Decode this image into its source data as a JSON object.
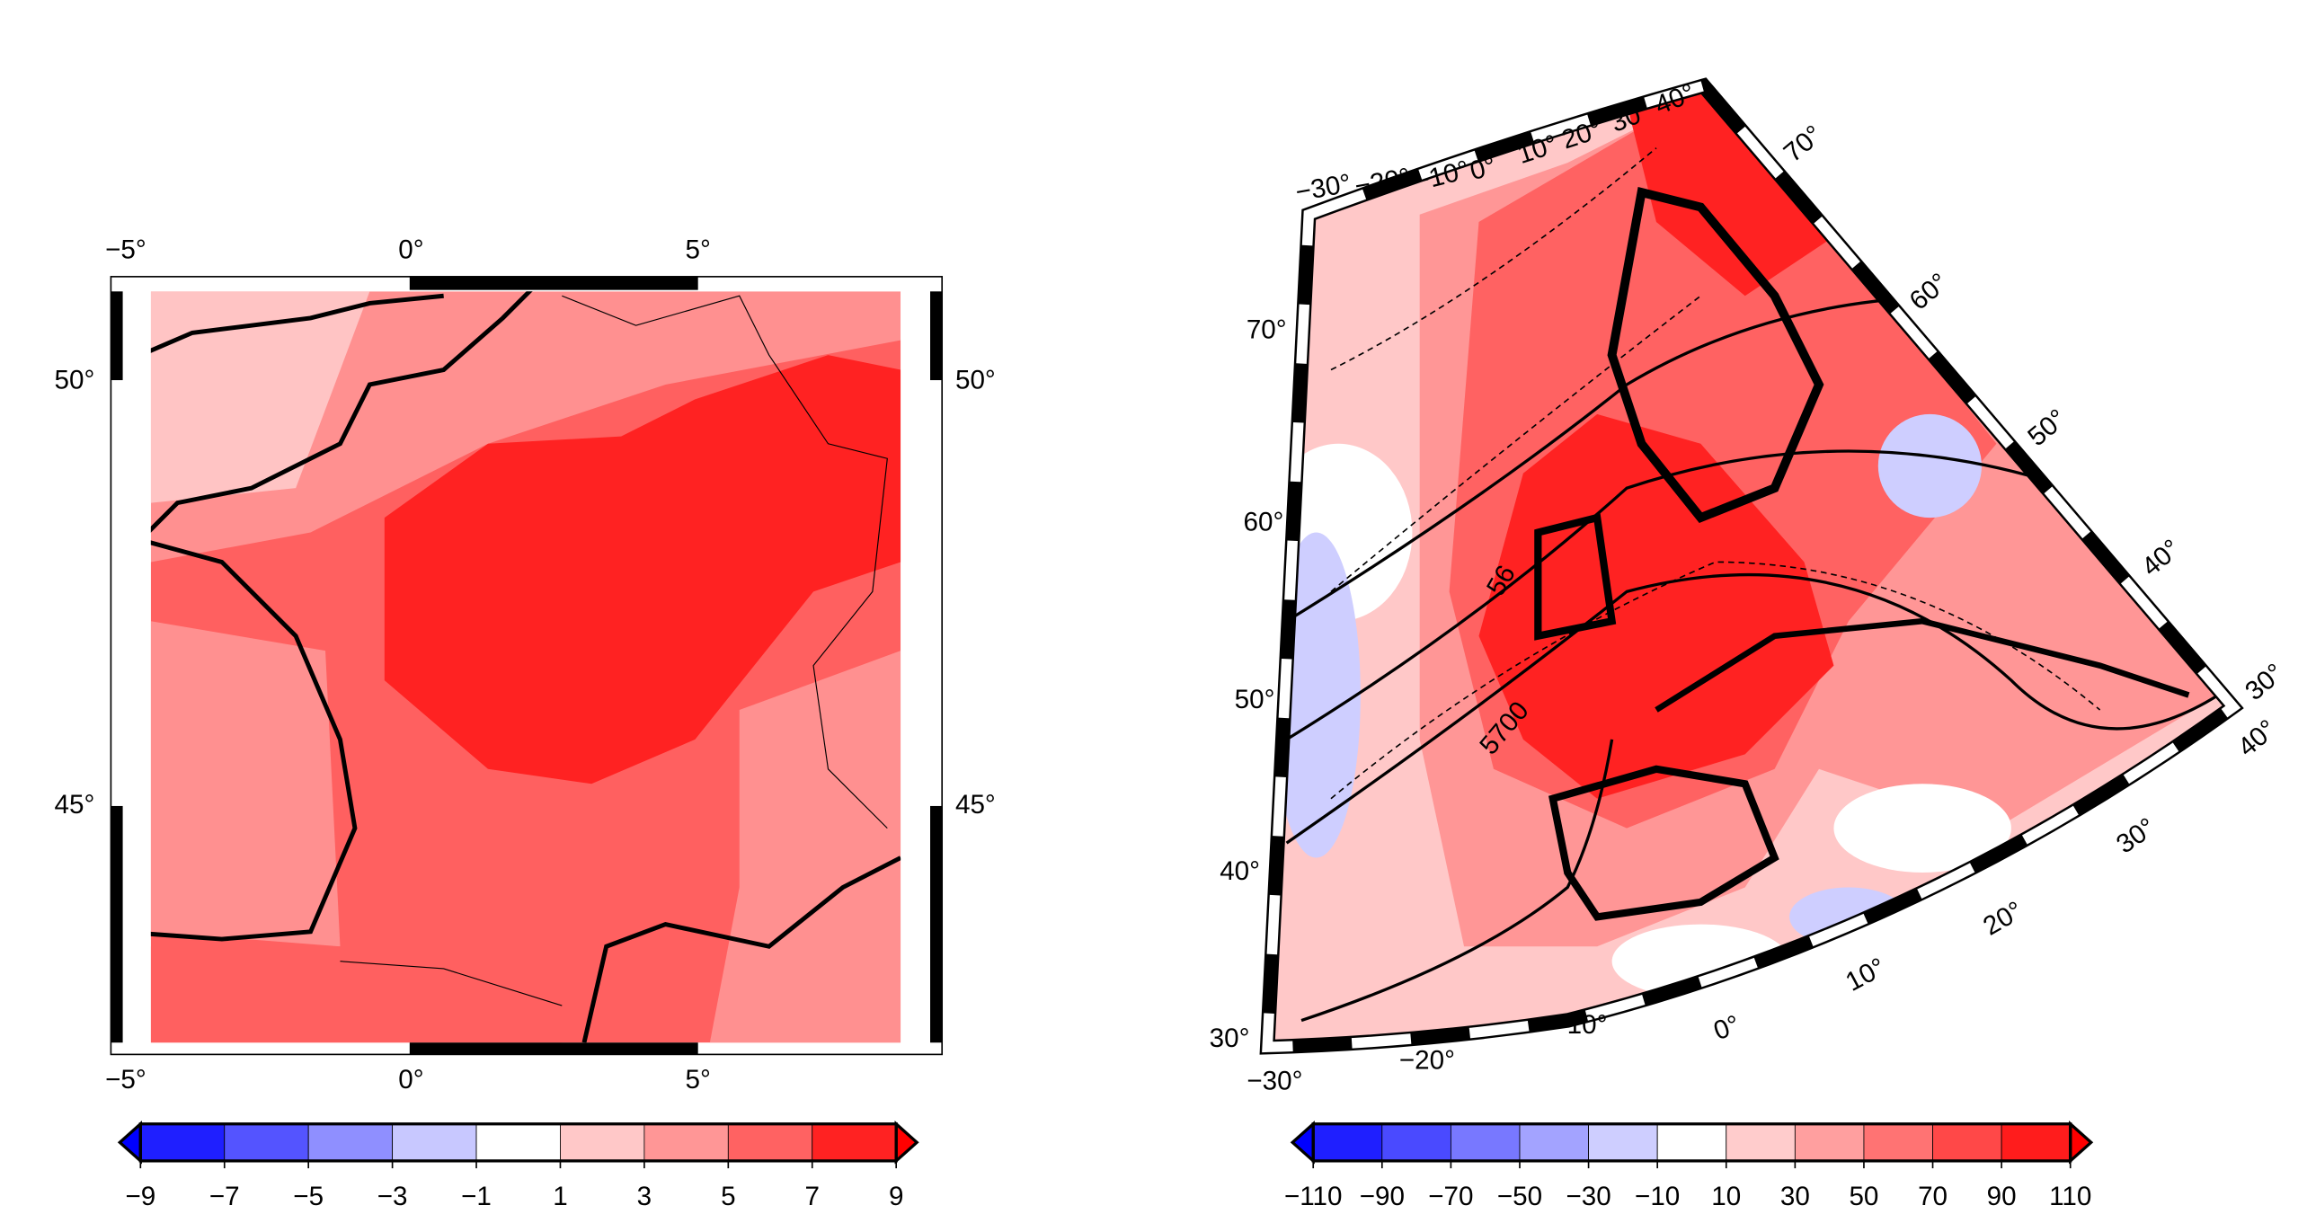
{
  "left_map": {
    "top_labels": [
      "−5°",
      "0°",
      "5°"
    ],
    "bottom_labels": [
      "−5°",
      "0°",
      "5°"
    ],
    "left_labels": [
      "50°",
      "45°"
    ],
    "right_labels": [
      "50°",
      "45°"
    ]
  },
  "left_colorbar": {
    "ticks": [
      {
        "value": -9,
        "label": "−9"
      },
      {
        "value": -7,
        "label": "−7"
      },
      {
        "value": -5,
        "label": "−5"
      },
      {
        "value": -3,
        "label": "−3"
      },
      {
        "value": -1,
        "label": "−1"
      },
      1,
      3,
      5,
      7,
      9
    ],
    "colors": [
      "#1f1fff",
      "#5454ff",
      "#8f8fff",
      "#c8c8ff",
      "#ffffff",
      "#ffc8c8",
      "#ff9696",
      "#ff6262",
      "#ff2222"
    ],
    "under_color": "#0000ff",
    "over_color": "#ff0000"
  },
  "right_map": {
    "top_labels": [
      "−30°",
      "−20°",
      "−10°",
      "0°",
      "10°",
      "20°",
      "30°",
      "40°"
    ],
    "right_labels": [
      "70°",
      "60°",
      "50°",
      "40°",
      "30°",
      "40°"
    ],
    "left_labels": [
      "70°",
      "60°",
      "50°",
      "40°",
      "30°"
    ],
    "bottom_labels": [
      "−30°",
      "−20°",
      "−10°",
      "0°",
      "10°",
      "20°",
      "30°"
    ],
    "contour_labels": [
      "56",
      "5700"
    ]
  },
  "right_colorbar": {
    "ticks": [
      {
        "value": -110,
        "label": "−110"
      },
      {
        "value": -90,
        "label": "−90"
      },
      {
        "value": -70,
        "label": "−70"
      },
      {
        "value": -50,
        "label": "−50"
      },
      {
        "value": -30,
        "label": "−30"
      },
      {
        "value": -10,
        "label": "−10"
      },
      10,
      30,
      50,
      70,
      90,
      110
    ],
    "colors": [
      "#1f1fff",
      "#4a4aff",
      "#7878ff",
      "#a3a3ff",
      "#ceceff",
      "#ffffff",
      "#ffcccc",
      "#ff9f9f",
      "#ff7373",
      "#ff4848",
      "#ff1c1c"
    ],
    "under_color": "#0000ff",
    "over_color": "#ff0000"
  }
}
